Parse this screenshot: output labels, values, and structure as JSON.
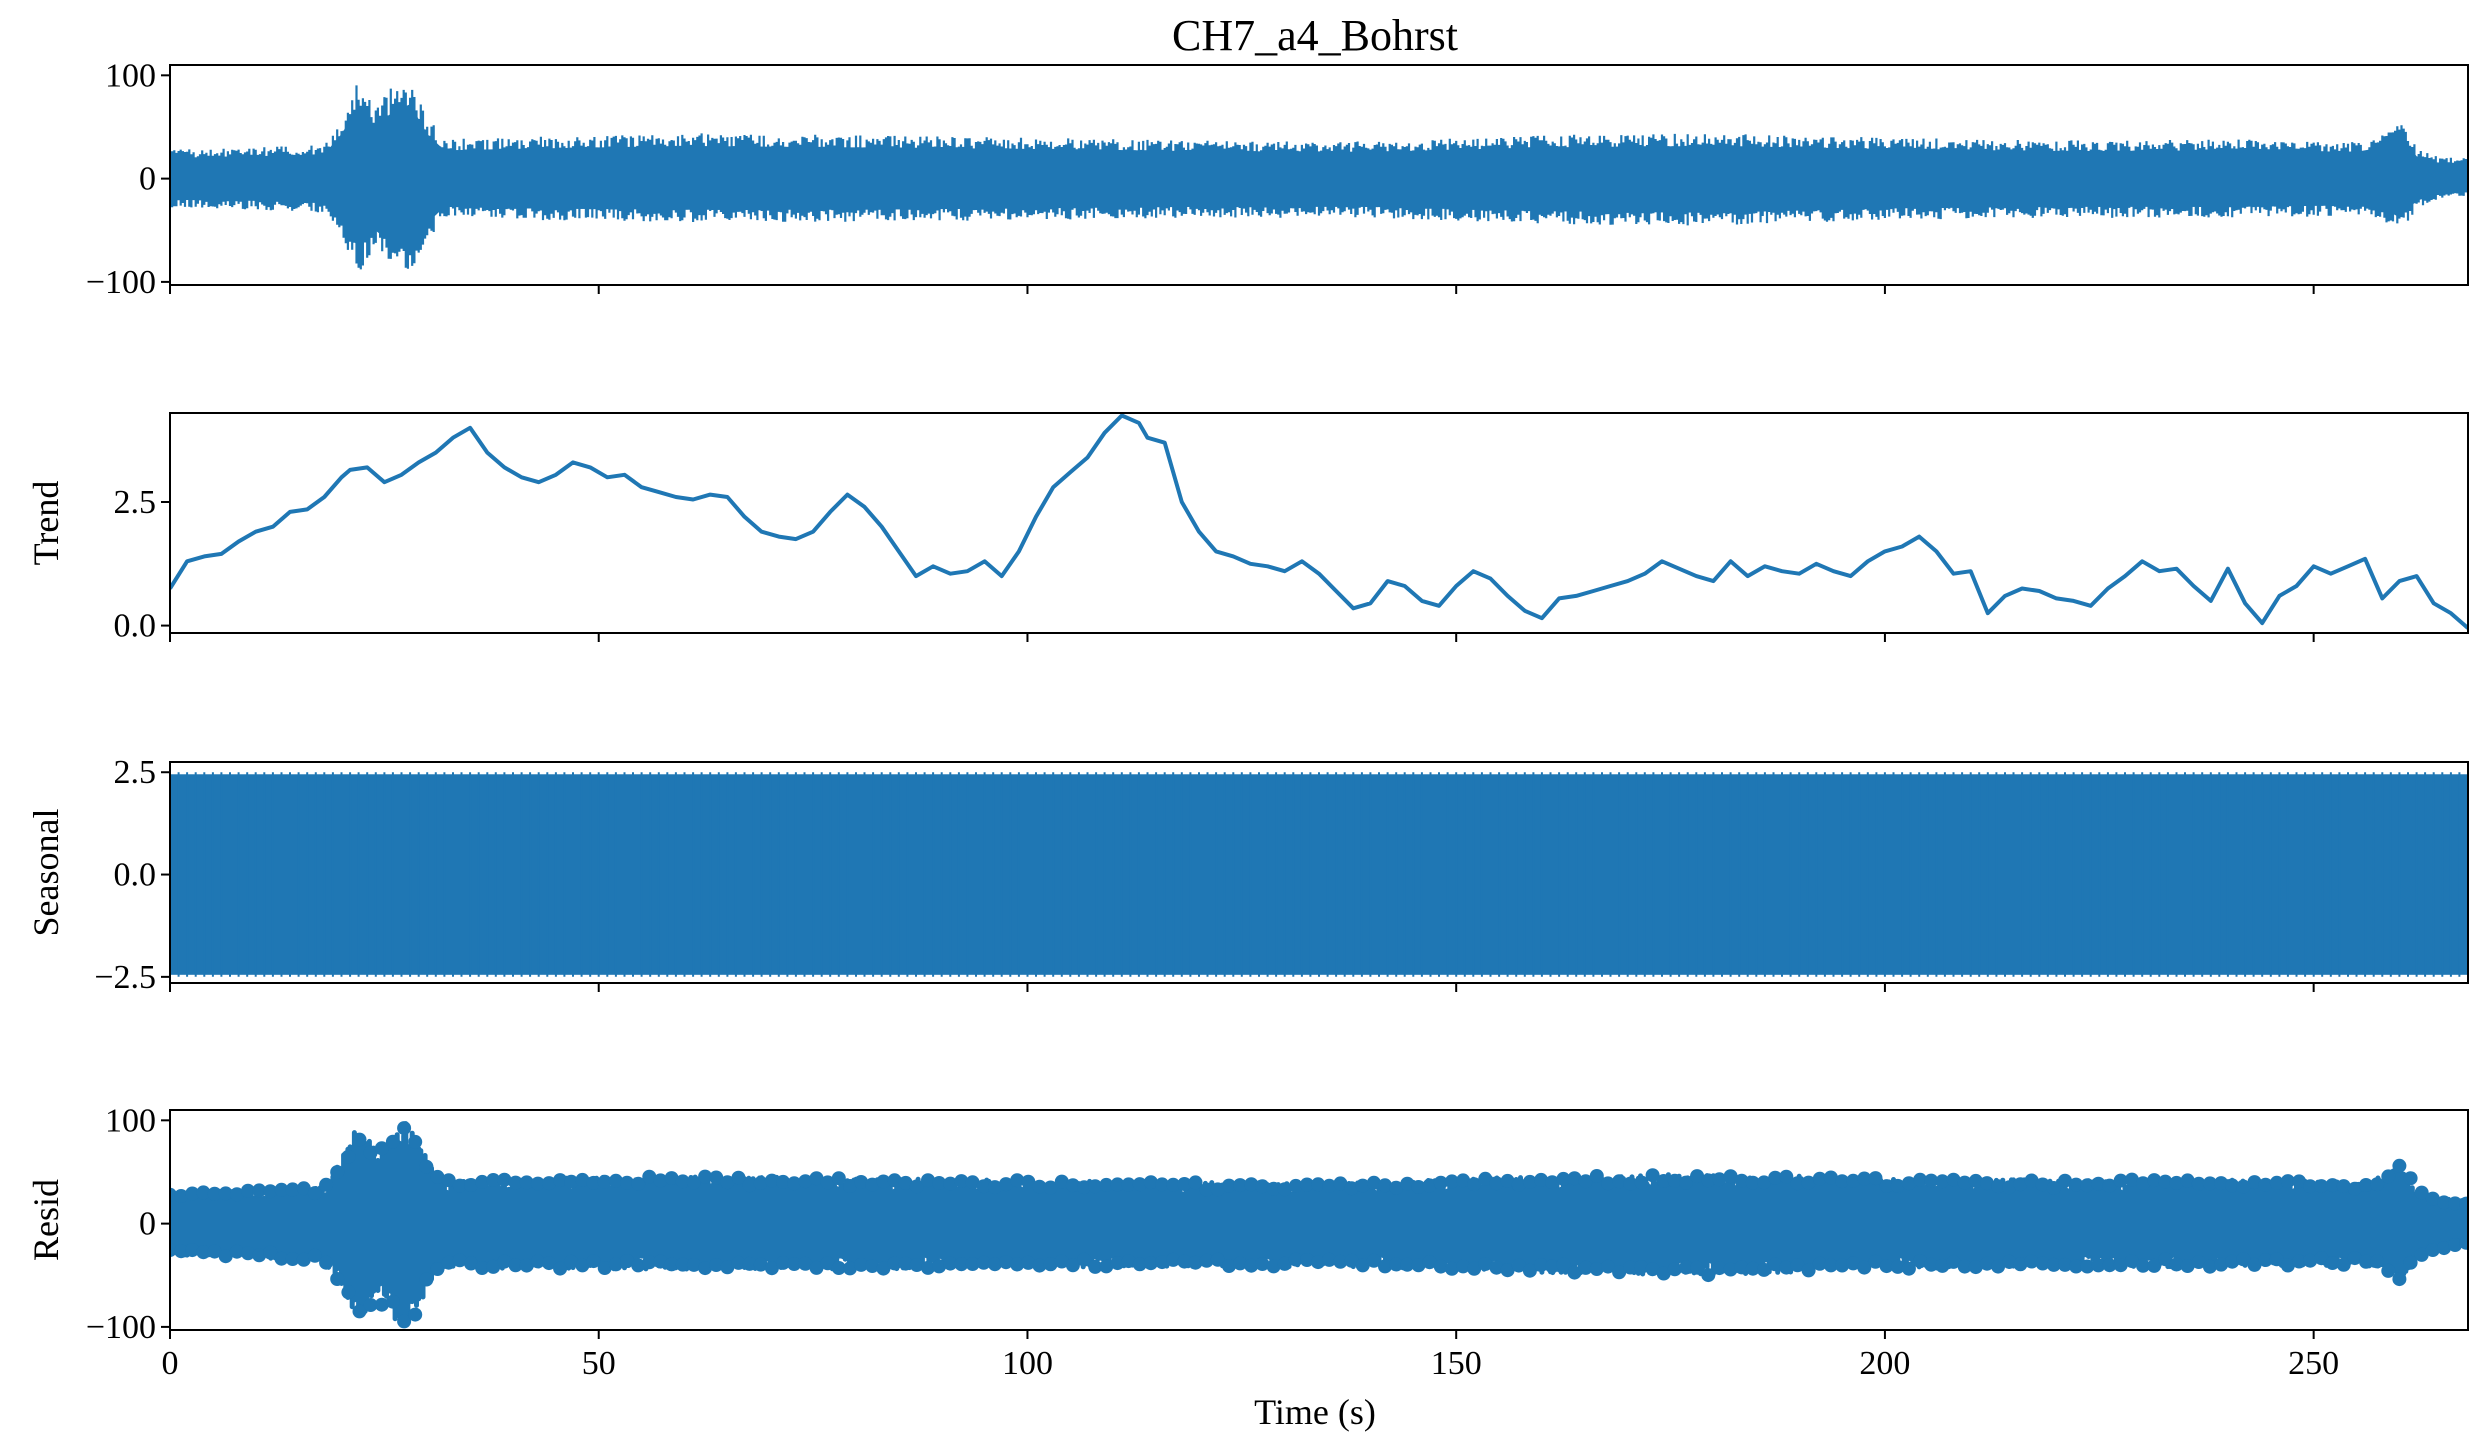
{
  "chart_data": {
    "type": "line",
    "title": "CH7_a4_Bohrst",
    "xlabel": "Time (s)",
    "xlim": [
      0,
      268
    ],
    "xticks": [
      0,
      50,
      100,
      150,
      200,
      250
    ],
    "xtick_labels": [
      "0",
      "50",
      "100",
      "150",
      "200",
      "250"
    ],
    "color": "#1f77b4",
    "panels": [
      {
        "id": "observed",
        "ylabel": "",
        "ylim": [
          -103,
          110
        ],
        "yticks": [
          100,
          0,
          -100
        ],
        "ytick_labels": [
          "100",
          "0",
          "−100"
        ],
        "style": "line",
        "envelope": {
          "x": [
            0,
            10,
            18,
            20,
            22,
            24,
            26,
            28,
            30,
            32,
            40,
            60,
            80,
            100,
            120,
            140,
            160,
            180,
            200,
            220,
            240,
            255,
            258,
            260,
            262,
            264,
            268
          ],
          "upper": [
            28,
            30,
            33,
            60,
            97,
            70,
            90,
            100,
            60,
            38,
            40,
            44,
            42,
            40,
            37,
            36,
            42,
            44,
            40,
            37,
            38,
            36,
            42,
            62,
            30,
            22,
            20
          ],
          "lower": [
            -28,
            -30,
            -33,
            -60,
            -93,
            -70,
            -88,
            -92,
            -60,
            -38,
            -40,
            -42,
            -42,
            -40,
            -38,
            -38,
            -44,
            -46,
            -40,
            -38,
            -38,
            -36,
            -40,
            -52,
            -30,
            -22,
            -18
          ]
        }
      },
      {
        "id": "trend",
        "ylabel": "Trend",
        "ylim": [
          -0.15,
          4.3
        ],
        "yticks": [
          2.5,
          0.0
        ],
        "ytick_labels": [
          "2.5",
          "0.0"
        ],
        "style": "line",
        "x": [
          0,
          2,
          4,
          6,
          8,
          10,
          12,
          14,
          16,
          18,
          20,
          21,
          23,
          25,
          27,
          29,
          31,
          33,
          35,
          37,
          39,
          41,
          43,
          45,
          47,
          49,
          51,
          53,
          55,
          57,
          59,
          61,
          63,
          65,
          67,
          69,
          71,
          73,
          75,
          77,
          79,
          81,
          83,
          85,
          87,
          89,
          91,
          93,
          95,
          97,
          99,
          101,
          103,
          105,
          107,
          109,
          111,
          113,
          114,
          116,
          118,
          120,
          122,
          124,
          126,
          128,
          130,
          132,
          134,
          136,
          138,
          140,
          142,
          144,
          146,
          148,
          150,
          152,
          154,
          156,
          158,
          160,
          162,
          164,
          166,
          168,
          170,
          172,
          174,
          176,
          178,
          180,
          182,
          184,
          186,
          188,
          190,
          192,
          194,
          196,
          198,
          200,
          202,
          204,
          206,
          208,
          210,
          212,
          214,
          216,
          218,
          220,
          222,
          224,
          226,
          228,
          230,
          232,
          234,
          236,
          238,
          240,
          242,
          244,
          246,
          248,
          250,
          252,
          254,
          256,
          258,
          260,
          262,
          264,
          266,
          268
        ],
        "values": [
          0.75,
          1.3,
          1.4,
          1.45,
          1.7,
          1.9,
          2.0,
          2.3,
          2.35,
          2.6,
          3.0,
          3.15,
          3.2,
          2.9,
          3.05,
          3.3,
          3.5,
          3.8,
          4.0,
          3.5,
          3.2,
          3.0,
          2.9,
          3.05,
          3.3,
          3.2,
          3.0,
          3.05,
          2.8,
          2.7,
          2.6,
          2.55,
          2.65,
          2.6,
          2.2,
          1.9,
          1.8,
          1.75,
          1.9,
          2.3,
          2.65,
          2.4,
          2.0,
          1.5,
          1.0,
          1.2,
          1.05,
          1.1,
          1.3,
          1.0,
          1.5,
          2.2,
          2.8,
          3.1,
          3.4,
          3.9,
          4.25,
          4.1,
          3.8,
          3.7,
          2.5,
          1.9,
          1.5,
          1.4,
          1.25,
          1.2,
          1.1,
          1.3,
          1.05,
          0.7,
          0.35,
          0.45,
          0.9,
          0.8,
          0.5,
          0.4,
          0.8,
          1.1,
          0.95,
          0.6,
          0.3,
          0.15,
          0.55,
          0.6,
          0.7,
          0.8,
          0.9,
          1.05,
          1.3,
          1.15,
          1.0,
          0.9,
          1.3,
          1.0,
          1.2,
          1.1,
          1.05,
          1.25,
          1.1,
          1.0,
          1.3,
          1.5,
          1.6,
          1.8,
          1.5,
          1.05,
          1.1,
          0.25,
          0.6,
          0.75,
          0.7,
          0.55,
          0.5,
          0.4,
          0.75,
          1.0,
          1.3,
          1.1,
          1.15,
          0.8,
          0.5,
          1.15,
          0.45,
          0.05,
          0.6,
          0.8,
          1.2,
          1.05,
          1.2,
          1.35,
          0.55,
          0.9,
          1.0,
          0.45,
          0.25,
          -0.05
        ]
      },
      {
        "id": "seasonal",
        "ylabel": "Seasonal",
        "ylim": [
          -2.65,
          2.75
        ],
        "yticks": [
          2.5,
          0.0,
          -2.5
        ],
        "ytick_labels": [
          "2.5",
          "0.0",
          "−2.5"
        ],
        "style": "band",
        "amplitude": 2.45
      },
      {
        "id": "resid",
        "ylabel": "Resid",
        "ylim": [
          -103,
          110
        ],
        "yticks": [
          100,
          0,
          -100
        ],
        "ytick_labels": [
          "100",
          "0",
          "−100"
        ],
        "style": "markers",
        "envelope": {
          "x": [
            0,
            10,
            18,
            20,
            22,
            24,
            26,
            28,
            30,
            32,
            40,
            60,
            80,
            100,
            120,
            140,
            160,
            180,
            200,
            220,
            240,
            255,
            258,
            260,
            262,
            264,
            268
          ],
          "upper": [
            30,
            33,
            36,
            62,
            98,
            72,
            92,
            100,
            62,
            42,
            44,
            46,
            44,
            42,
            40,
            40,
            46,
            48,
            44,
            42,
            44,
            40,
            46,
            66,
            34,
            26,
            22
          ],
          "lower": [
            -30,
            -33,
            -36,
            -62,
            -97,
            -72,
            -92,
            -100,
            -62,
            -42,
            -44,
            -44,
            -44,
            -42,
            -42,
            -42,
            -48,
            -50,
            -44,
            -42,
            -42,
            -40,
            -44,
            -55,
            -34,
            -26,
            -20
          ]
        }
      }
    ]
  }
}
